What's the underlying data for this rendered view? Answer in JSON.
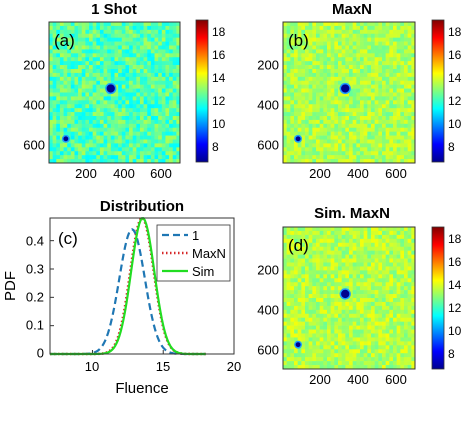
{
  "chart_data": [
    {
      "type": "heatmap",
      "title": "1 Shot",
      "panel_label": "(a)",
      "xticks": [
        "200",
        "400",
        "600"
      ],
      "yticks": [
        "200",
        "400",
        "600"
      ],
      "xlim": [
        0,
        700
      ],
      "ylim": [
        0,
        700
      ],
      "colorbar": {
        "ticks": [
          "8",
          "10",
          "12",
          "14",
          "16",
          "18"
        ],
        "range": [
          7,
          19
        ]
      },
      "background_level": 12.5,
      "noise": 1.1,
      "spots": [
        {
          "x": 330,
          "y": 330,
          "r": 22
        },
        {
          "x": 90,
          "y": 580,
          "r": 13
        }
      ]
    },
    {
      "type": "heatmap",
      "title": "MaxN",
      "panel_label": "(b)",
      "xticks": [
        "200",
        "400",
        "600"
      ],
      "yticks": [
        "200",
        "400",
        "600"
      ],
      "xlim": [
        0,
        700
      ],
      "ylim": [
        0,
        700
      ],
      "colorbar": {
        "ticks": [
          "8",
          "10",
          "12",
          "14",
          "16",
          "18"
        ],
        "range": [
          7,
          19
        ]
      },
      "background_level": 13.5,
      "noise": 0.8,
      "spots": [
        {
          "x": 330,
          "y": 330,
          "r": 22
        },
        {
          "x": 80,
          "y": 580,
          "r": 13
        }
      ]
    },
    {
      "type": "line",
      "title": "Distribution",
      "panel_label": "(c)",
      "xlabel": "Fluence",
      "ylabel": "PDF",
      "xlim": [
        7,
        20
      ],
      "ylim": [
        0,
        0.48
      ],
      "xticks": [
        "10",
        "15",
        "20"
      ],
      "yticks": [
        "0",
        "0.1",
        "0.2",
        "0.3",
        "0.4"
      ],
      "legend_position": "top-right",
      "series": [
        {
          "name": "1",
          "color": "#1f77b4",
          "style": "dashed",
          "mean": 12.8,
          "sd": 0.9,
          "peak": 0.44
        },
        {
          "name": "MaxN",
          "color": "#d62728",
          "style": "dotted",
          "mean": 13.5,
          "sd": 0.83,
          "peak": 0.48
        },
        {
          "name": "Sim",
          "color": "#22dd22",
          "style": "solid",
          "mean": 13.55,
          "sd": 0.82,
          "peak": 0.48
        }
      ]
    },
    {
      "type": "heatmap",
      "title": "Sim. MaxN",
      "panel_label": "(d)",
      "xticks": [
        "200",
        "400",
        "600"
      ],
      "yticks": [
        "200",
        "400",
        "600"
      ],
      "xlim": [
        0,
        700
      ],
      "ylim": [
        0,
        700
      ],
      "colorbar": {
        "ticks": [
          "8",
          "10",
          "12",
          "14",
          "16",
          "18"
        ],
        "range": [
          7,
          19
        ]
      },
      "background_level": 13.6,
      "noise": 0.8,
      "spots": [
        {
          "x": 330,
          "y": 330,
          "r": 22
        },
        {
          "x": 80,
          "y": 580,
          "r": 13
        }
      ]
    }
  ]
}
